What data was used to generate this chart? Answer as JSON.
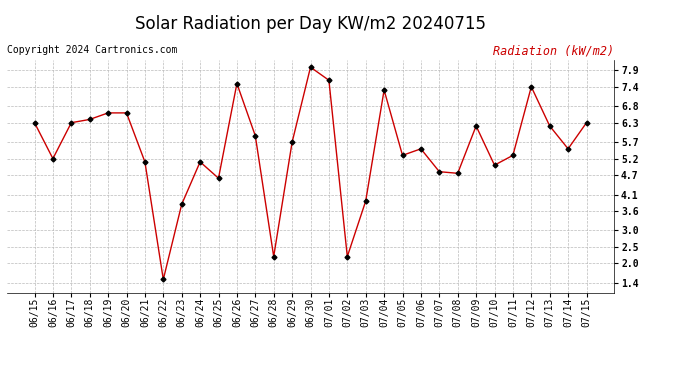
{
  "title": "Solar Radiation per Day KW/m2 20240715",
  "copyright": "Copyright 2024 Cartronics.com",
  "legend_label": "Radiation (kW/m2)",
  "dates": [
    "06/15",
    "06/16",
    "06/17",
    "06/18",
    "06/19",
    "06/20",
    "06/21",
    "06/22",
    "06/23",
    "06/24",
    "06/25",
    "06/26",
    "06/27",
    "06/28",
    "06/29",
    "06/30",
    "07/01",
    "07/02",
    "07/03",
    "07/04",
    "07/05",
    "07/06",
    "07/07",
    "07/08",
    "07/09",
    "07/10",
    "07/11",
    "07/12",
    "07/13",
    "07/14",
    "07/15"
  ],
  "values": [
    6.3,
    5.2,
    6.3,
    6.4,
    6.6,
    6.6,
    5.1,
    1.5,
    3.8,
    5.1,
    4.6,
    7.5,
    5.9,
    2.2,
    5.7,
    8.0,
    7.6,
    2.2,
    3.9,
    7.3,
    5.3,
    5.5,
    4.8,
    4.75,
    6.2,
    5.0,
    5.3,
    7.4,
    6.2,
    5.5,
    6.3
  ],
  "line_color": "#cc0000",
  "marker_color": "#000000",
  "bg_color": "#ffffff",
  "grid_color": "#bbbbbb",
  "title_color": "#000000",
  "legend_color": "#cc0000",
  "copyright_color": "#000000",
  "ylim": [
    1.1,
    8.22
  ],
  "yticks": [
    1.4,
    2.0,
    2.5,
    3.0,
    3.6,
    4.1,
    4.7,
    5.2,
    5.7,
    6.3,
    6.8,
    7.4,
    7.9
  ],
  "title_fontsize": 12,
  "tick_fontsize": 7,
  "legend_fontsize": 8.5,
  "copyright_fontsize": 7
}
